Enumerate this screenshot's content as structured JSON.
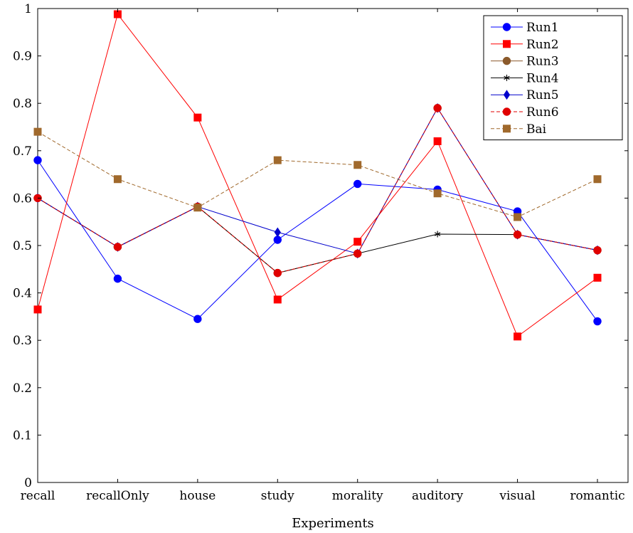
{
  "chart_data": {
    "type": "line",
    "xlabel": "Experiments",
    "ylabel": "",
    "ylim": [
      0,
      1
    ],
    "yticks": [
      0,
      0.1,
      0.2,
      0.3,
      0.4,
      0.5,
      0.6,
      0.7,
      0.8,
      0.9,
      1
    ],
    "ytick_labels": [
      "0",
      "0.1",
      "0.2",
      "0.3",
      "0.4",
      "0.5",
      "0.6",
      "0.7",
      "0.8",
      "0.9",
      "1"
    ],
    "categories": [
      "recall",
      "recallOnly",
      "house",
      "study",
      "morality",
      "auditory",
      "visual",
      "romantic"
    ],
    "grid": false,
    "legend_position": "top-right",
    "series": [
      {
        "name": "Run1",
        "color": "#0000ff",
        "marker": "circle",
        "dash": "solid",
        "values": [
          0.68,
          0.43,
          0.345,
          0.512,
          0.63,
          0.618,
          0.572,
          0.34
        ]
      },
      {
        "name": "Run2",
        "color": "#ff0000",
        "marker": "square",
        "dash": "solid",
        "values": [
          0.365,
          0.988,
          0.77,
          0.386,
          0.508,
          0.72,
          0.308,
          0.432
        ]
      },
      {
        "name": "Run3",
        "color": "#8b5a2b",
        "marker": "circle",
        "dash": "solid",
        "values": [
          0.6,
          0.497,
          0.582,
          0.442,
          0.483,
          0.79,
          0.523,
          0.49
        ]
      },
      {
        "name": "Run4",
        "color": "#000000",
        "marker": "star",
        "dash": "solid",
        "values": [
          0.6,
          0.497,
          0.582,
          0.442,
          0.483,
          0.524,
          0.523,
          0.49
        ]
      },
      {
        "name": "Run5",
        "color": "#0000cc",
        "marker": "diamond",
        "dash": "solid",
        "values": [
          0.6,
          0.497,
          0.582,
          0.528,
          0.483,
          0.79,
          0.523,
          0.49
        ]
      },
      {
        "name": "Run6",
        "color": "#e00000",
        "marker": "circle",
        "dash": "dashed",
        "values": [
          0.6,
          0.497,
          0.582,
          0.442,
          0.483,
          0.79,
          0.523,
          0.49
        ]
      },
      {
        "name": "Bai",
        "color": "#a0692c",
        "marker": "square",
        "dash": "dashed",
        "values": [
          0.74,
          0.64,
          0.58,
          0.68,
          0.67,
          0.61,
          0.56,
          0.64
        ]
      }
    ]
  }
}
